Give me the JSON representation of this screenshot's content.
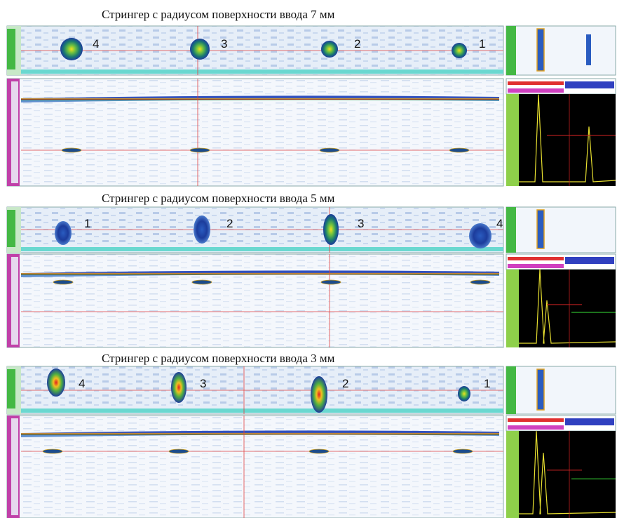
{
  "panels": [
    {
      "title": "Стрингер с радиусом поверхности ввода 7 мм",
      "labels": [
        "4",
        "3",
        "2",
        "1"
      ]
    },
    {
      "title": "Стрингер с радиусом поверхности ввода 5 мм",
      "labels": [
        "1",
        "2",
        "3",
        "4"
      ]
    },
    {
      "title": "Стрингер с радиусом поверхности ввода 3 мм",
      "labels": [
        "4",
        "3",
        "2",
        "1"
      ]
    }
  ]
}
